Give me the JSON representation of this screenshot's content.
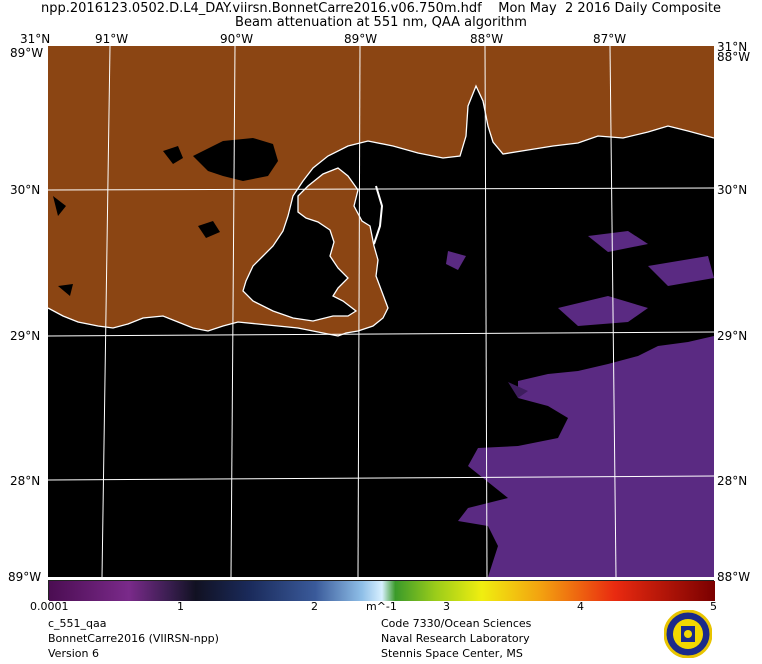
{
  "header": {
    "line1": "npp.2016123.0502.D.L4_DAY.viirsn.BonnetCarre2016.v06.750m.hdf    Mon May  2 2016 Daily Composite",
    "line2": "Beam attenuation at 551 nm, QAA algorithm"
  },
  "map": {
    "lon_labels": [
      "91°W",
      "90°W",
      "89°W",
      "88°W",
      "87°W"
    ],
    "lat_labels": [
      "30°N",
      "29°N",
      "28°N"
    ],
    "corner_labels": {
      "top_left": "31°N",
      "top_left_lon": "89°W",
      "top_right": "31°N",
      "top_right_lon": "88°W",
      "bottom_left": "89°W",
      "bottom_left_lon": "89°W",
      "bottom_right": "88°W"
    },
    "colors": {
      "land": "#8B4513",
      "water": "#000000",
      "coast": "#ffffff",
      "plume": "#5a2a82",
      "grid": "#ffffff"
    }
  },
  "colorbar": {
    "min_label": "0.0001",
    "tick_labels": [
      "1",
      "2",
      "3",
      "4",
      "5"
    ],
    "unit": "m^-1"
  },
  "footer": {
    "left": [
      "c_551_qaa",
      "BonnetCarre2016 (VIIRSN-npp)",
      "Version 6"
    ],
    "right": [
      "Code 7330/Ocean Sciences",
      "Naval Research Laboratory",
      "Stennis Space Center, MS"
    ]
  }
}
